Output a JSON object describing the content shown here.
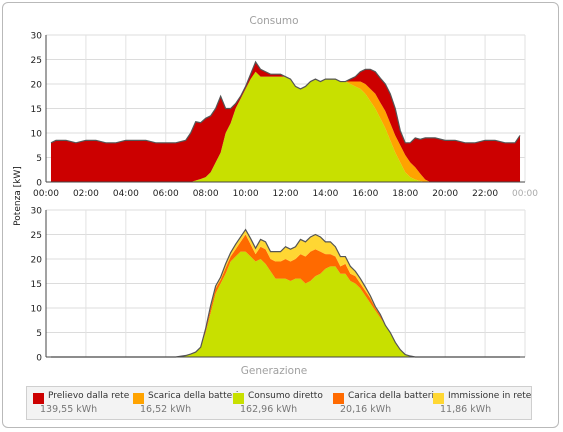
{
  "colors": {
    "grid_prelievo": "#cc0000",
    "scarica": "#ffa300",
    "consumo_diretto": "#c8e000",
    "carica": "#ff6a00",
    "immissione": "#ffd733",
    "frame_line": "#555555"
  },
  "chart_data": [
    {
      "type": "area",
      "title": "Consumo",
      "ylabel": "Potenza [kW]",
      "ylim": [
        0,
        30
      ],
      "yticks": [
        0,
        5,
        10,
        15,
        20,
        25,
        30
      ],
      "xlim": [
        0,
        24
      ],
      "xtick_labels": [
        "00:00",
        "02:00",
        "04:00",
        "06:00",
        "08:00",
        "10:00",
        "12:00",
        "14:00",
        "16:00",
        "18:00",
        "20:00",
        "22:00",
        "00:00"
      ],
      "grid": true,
      "x": [
        0.25,
        0.5,
        1,
        1.5,
        2,
        2.5,
        3,
        3.5,
        4,
        4.5,
        5,
        5.5,
        6,
        6.5,
        7,
        7.25,
        7.5,
        7.75,
        8,
        8.25,
        8.5,
        8.75,
        9,
        9.25,
        9.5,
        9.75,
        10,
        10.25,
        10.5,
        10.75,
        11,
        11.25,
        11.5,
        11.75,
        12,
        12.25,
        12.5,
        12.75,
        13,
        13.25,
        13.5,
        13.75,
        14,
        14.25,
        14.5,
        14.75,
        15,
        15.25,
        15.5,
        15.75,
        16,
        16.25,
        16.5,
        16.75,
        17,
        17.25,
        17.5,
        17.75,
        18,
        18.25,
        18.5,
        18.75,
        19,
        19.25,
        19.5,
        20,
        20.5,
        21,
        21.5,
        22,
        22.5,
        23,
        23.5,
        23.75
      ],
      "series": [
        {
          "name": "Consumo diretto",
          "values": [
            0,
            0,
            0,
            0,
            0,
            0,
            0,
            0,
            0,
            0,
            0,
            0,
            0,
            0,
            0,
            0,
            0.3,
            0.6,
            1,
            2,
            4,
            6,
            10,
            12,
            15,
            17,
            19,
            21,
            22.5,
            21.5,
            21.5,
            21.5,
            21.5,
            21.5,
            21.5,
            21,
            19.5,
            19,
            19.5,
            20.5,
            21,
            20.5,
            21,
            21,
            21,
            20.5,
            20.5,
            20,
            19.5,
            19,
            18,
            16.5,
            15,
            13,
            11,
            8.5,
            6,
            4,
            2,
            1,
            0.5,
            0.2,
            0,
            0,
            0,
            0,
            0,
            0,
            0,
            0,
            0,
            0,
            0,
            0
          ]
        },
        {
          "name": "Scarica della batteria",
          "values": [
            0,
            0,
            0,
            0,
            0,
            0,
            0,
            0,
            0,
            0,
            0,
            0,
            0,
            0,
            0,
            0,
            0,
            0,
            0,
            0,
            0,
            0,
            0,
            0,
            0,
            0,
            0,
            0,
            0,
            0,
            0,
            0,
            0,
            0,
            0,
            0,
            0,
            0,
            0,
            0,
            0,
            0,
            0,
            0,
            0,
            0,
            0,
            0.5,
            1,
            1.5,
            2,
            2.5,
            3,
            3.2,
            3.5,
            3.5,
            3.5,
            3.5,
            3.5,
            3,
            2.5,
            1.5,
            0.5,
            0,
            0,
            0,
            0,
            0,
            0,
            0,
            0,
            0,
            0,
            0
          ]
        },
        {
          "name": "Prelievo dalla rete",
          "values": [
            8,
            8.5,
            8.5,
            8,
            8.5,
            8.5,
            8,
            8,
            8.5,
            8.5,
            8.5,
            8,
            8,
            8,
            8.5,
            10,
            12,
            11.5,
            12,
            11.5,
            11,
            11.5,
            5,
            3,
            1,
            0.5,
            0.5,
            1,
            2,
            1.5,
            1,
            0.5,
            0.5,
            0.5,
            0,
            0,
            0,
            0,
            0,
            0,
            0,
            0,
            0,
            0,
            0,
            0,
            0,
            0.5,
            1,
            2,
            3,
            4,
            4.5,
            5,
            5.5,
            6,
            5.5,
            3,
            2.5,
            4,
            6,
            7,
            8.5,
            9,
            9,
            8.5,
            8.5,
            8,
            8,
            8.5,
            8.5,
            8,
            8,
            9.5
          ]
        }
      ]
    },
    {
      "type": "area",
      "title": "Generazione",
      "ylim": [
        0,
        30
      ],
      "yticks": [
        0,
        5,
        10,
        15,
        20,
        25,
        30
      ],
      "xlim": [
        0,
        24
      ],
      "grid": true,
      "x": [
        0.25,
        6.5,
        7,
        7.25,
        7.5,
        7.75,
        8,
        8.25,
        8.5,
        8.75,
        9,
        9.25,
        9.5,
        9.75,
        10,
        10.25,
        10.5,
        10.75,
        11,
        11.25,
        11.5,
        11.75,
        12,
        12.25,
        12.5,
        12.75,
        13,
        13.25,
        13.5,
        13.75,
        14,
        14.25,
        14.5,
        14.75,
        15,
        15.25,
        15.5,
        15.75,
        16,
        16.25,
        16.5,
        16.75,
        17,
        17.25,
        17.5,
        17.75,
        18,
        18.25,
        18.5,
        18.75,
        23.75
      ],
      "series": [
        {
          "name": "Consumo diretto",
          "values": [
            0,
            0,
            0.3,
            0.6,
            1,
            2,
            5,
            9,
            13,
            15,
            17,
            19.5,
            20.5,
            21.5,
            21.5,
            20.5,
            19.5,
            20,
            19,
            17.5,
            16,
            16,
            16,
            15.5,
            16,
            16,
            15,
            15.5,
            16.5,
            17,
            18,
            18.5,
            18.5,
            17,
            17,
            15.5,
            15,
            14,
            12.5,
            11,
            9.5,
            8,
            6.5,
            5,
            3,
            1.5,
            0.5,
            0.2,
            0,
            0,
            0
          ]
        },
        {
          "name": "Carica della batteria",
          "values": [
            0,
            0,
            0,
            0,
            0,
            0,
            0.5,
            1,
            1,
            0.8,
            1.2,
            1,
            1.5,
            2,
            3.5,
            2.5,
            1.5,
            2.5,
            3,
            2.5,
            3.5,
            3.5,
            4,
            4,
            4,
            5,
            5.5,
            6,
            5.5,
            4.5,
            3,
            2.5,
            2,
            1.5,
            2,
            1.5,
            1.5,
            1,
            1,
            1,
            0.5,
            0.5,
            0,
            0,
            0,
            0,
            0,
            0,
            0,
            0,
            0
          ]
        },
        {
          "name": "Immissione in rete",
          "values": [
            0,
            0,
            0,
            0,
            0,
            0,
            0.3,
            0.5,
            0.5,
            0.5,
            0.8,
            0.8,
            1,
            1,
            1,
            1.2,
            1.2,
            1.5,
            1.5,
            1.5,
            2,
            2,
            2.5,
            2.5,
            2.5,
            3,
            3,
            3,
            3,
            3,
            2.5,
            2.5,
            2,
            2,
            1.5,
            1.5,
            1,
            1,
            0.8,
            0.5,
            0.3,
            0.2,
            0,
            0,
            0,
            0,
            0,
            0,
            0,
            0,
            0
          ]
        }
      ]
    }
  ],
  "legend": [
    {
      "name": "Prelievo dalla rete",
      "value": "139,55 kWh",
      "color_key": "grid_prelievo"
    },
    {
      "name": "Scarica della batteria",
      "value": "16,52 kWh",
      "color_key": "scarica"
    },
    {
      "name": "Consumo diretto",
      "value": "162,96 kWh",
      "color_key": "consumo_diretto"
    },
    {
      "name": "Carica della batteria",
      "value": "20,16 kWh",
      "color_key": "carica"
    },
    {
      "name": "Immissione in rete",
      "value": "11,86 kWh",
      "color_key": "immissione"
    }
  ]
}
